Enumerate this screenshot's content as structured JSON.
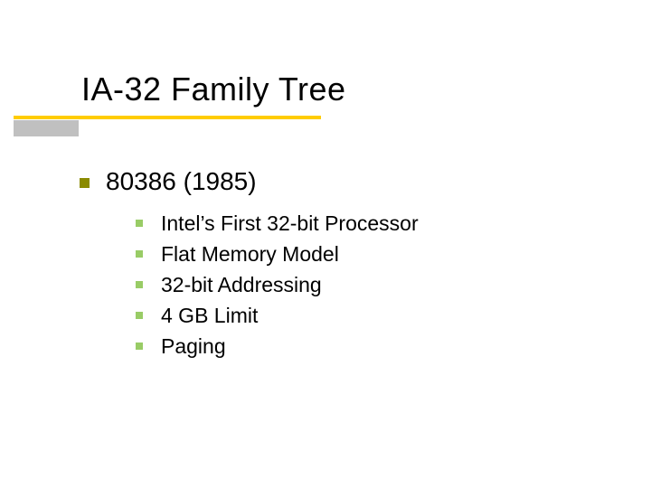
{
  "slide": {
    "title": "IA-32 Family Tree",
    "title_fontsize": 36,
    "title_color": "#000000",
    "underline": {
      "top_color": "#ffcc00",
      "top_height": 4,
      "top_width": 340,
      "bottom_color": "#c0c0c0",
      "bottom_height": 18,
      "bottom_width": 72
    },
    "background_color": "#ffffff",
    "bullets": {
      "level1": {
        "marker_color": "#8b8b00",
        "marker_size": 11,
        "fontsize": 28,
        "items": [
          {
            "text": "80386 (1985)"
          }
        ]
      },
      "level2": {
        "marker_color": "#99cc66",
        "marker_size": 8,
        "fontsize": 23,
        "items": [
          {
            "text": "Intel’s First 32-bit Processor"
          },
          {
            "text": "Flat Memory Model"
          },
          {
            "text": "32-bit Addressing"
          },
          {
            "text": "4 GB Limit"
          },
          {
            "text": "Paging"
          }
        ]
      }
    }
  }
}
